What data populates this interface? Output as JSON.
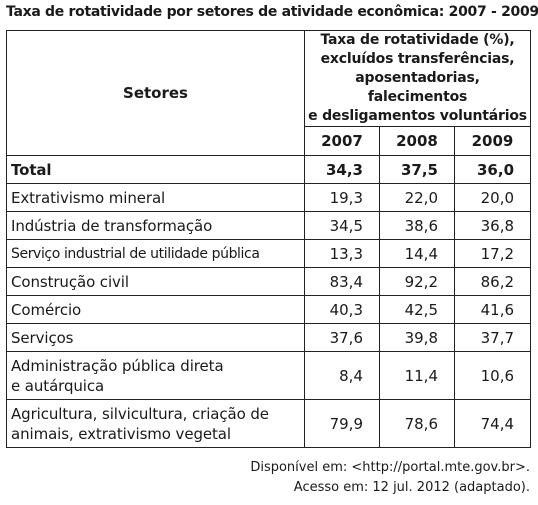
{
  "title": "Taxa de rotatividade por setores de atividade econômica: 2007 - 2009",
  "table": {
    "sector_header": "Setores",
    "group_header_lines": [
      "Taxa de rotatividade (%),",
      "excluídos transferências,",
      "aposentadorias, falecimentos",
      "e desligamentos voluntários"
    ],
    "years": [
      "2007",
      "2008",
      "2009"
    ],
    "rows": [
      {
        "name": "Total",
        "values": [
          "34,3",
          "37,5",
          "36,0"
        ]
      },
      {
        "name": "Extrativismo mineral",
        "values": [
          "19,3",
          "22,0",
          "20,0"
        ]
      },
      {
        "name": "Indústria de transformação",
        "values": [
          "34,5",
          "38,6",
          "36,8"
        ]
      },
      {
        "name": "Serviço industrial de utilidade pública",
        "values": [
          "13,3",
          "14,4",
          "17,2"
        ]
      },
      {
        "name": "Construção civil",
        "values": [
          "83,4",
          "92,2",
          "86,2"
        ]
      },
      {
        "name": "Comércio",
        "values": [
          "40,3",
          "42,5",
          "41,6"
        ]
      },
      {
        "name": "Serviços",
        "values": [
          "37,6",
          "39,8",
          "37,7"
        ]
      },
      {
        "name_lines": [
          "Administração pública direta",
          "e autárquica"
        ],
        "values": [
          "8,4",
          "11,4",
          "10,6"
        ]
      },
      {
        "name_lines": [
          "Agricultura, silvicultura, criação de",
          "animais, extrativismo vegetal"
        ],
        "values": [
          "79,9",
          "78,6",
          "74,4"
        ]
      }
    ]
  },
  "source": {
    "line1": "Disponível em: <http://portal.mte.gov.br>.",
    "line2": "Acesso em: 12 jul. 2012 (adaptado)."
  }
}
